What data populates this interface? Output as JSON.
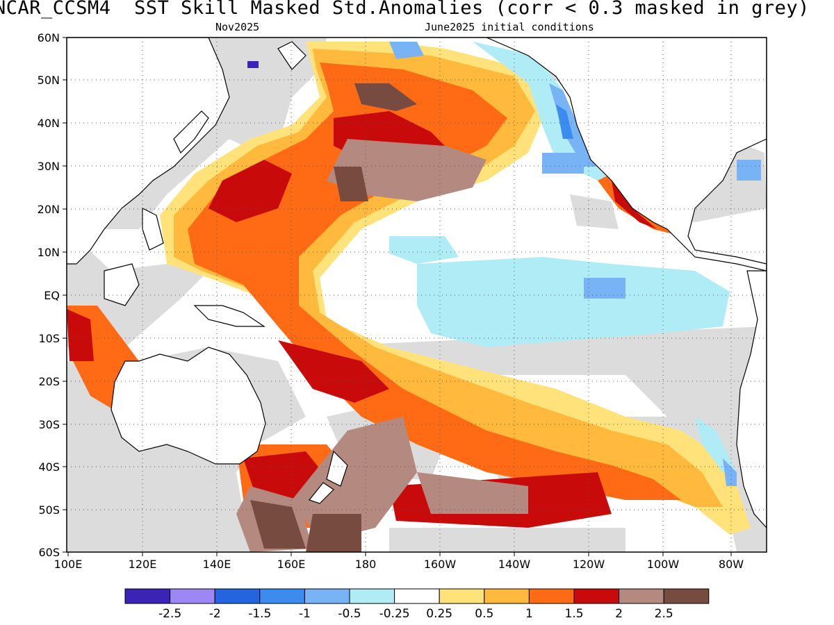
{
  "header": {
    "title": "NCAR_CCSM4  SST Skill Masked Std.Anomalies (corr < 0.3 masked in grey)",
    "subtitle_left": "Nov2025",
    "subtitle_right": "June2025 initial conditions"
  },
  "axes": {
    "lat_labels": [
      "60N",
      "50N",
      "40N",
      "30N",
      "20N",
      "10N",
      "EQ",
      "10S",
      "20S",
      "30S",
      "40S",
      "50S",
      "60S"
    ],
    "lon_labels": [
      "100E",
      "120E",
      "140E",
      "160E",
      "180",
      "160W",
      "140W",
      "120W",
      "100W",
      "80W"
    ]
  },
  "colorbar": {
    "colors": [
      "#3a23b5",
      "#9c87f5",
      "#2365e0",
      "#3c8cf0",
      "#78b4f5",
      "#b0ecf5",
      "#ffffff",
      "#ffe37a",
      "#ffb93c",
      "#ff6a14",
      "#c80a0a",
      "#b48a80",
      "#784b40"
    ],
    "labels": [
      "-2.5",
      "-2",
      "-1.5",
      "-1",
      "-0.5",
      "-0.25",
      "0.25",
      "0.5",
      "1",
      "1.5",
      "2",
      "2.5"
    ]
  },
  "colors": {
    "masked": "#dcdcdc",
    "land": "#ffffff",
    "coast": "#000000"
  }
}
